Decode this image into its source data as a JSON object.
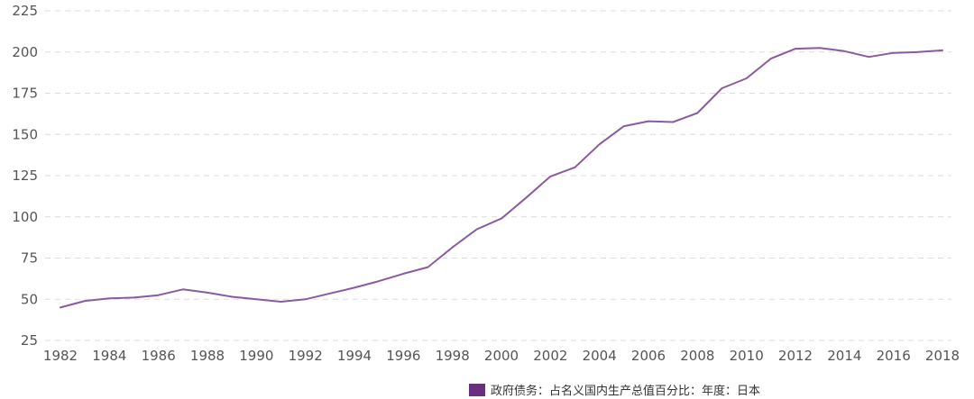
{
  "colors": {
    "series": "#8a5aa0",
    "legend_swatch": "#6b2d7e"
  },
  "chart_data": {
    "type": "line",
    "x": [
      1982,
      1983,
      1984,
      1985,
      1986,
      1987,
      1988,
      1989,
      1990,
      1991,
      1992,
      1993,
      1994,
      1995,
      1996,
      1997,
      1998,
      1999,
      2000,
      2001,
      2002,
      2003,
      2004,
      2005,
      2006,
      2007,
      2008,
      2009,
      2010,
      2011,
      2012,
      2013,
      2014,
      2015,
      2016,
      2017,
      2018
    ],
    "series": [
      {
        "name": "政府债务：占名义国内生产总值百分比：年度：日本",
        "values": [
          45,
          49,
          50.5,
          51,
          52.5,
          56,
          54,
          51.5,
          50,
          48.5,
          50,
          53.5,
          57,
          61,
          65.5,
          69.5,
          81.5,
          92.5,
          99,
          111.5,
          124.5,
          130,
          144,
          155,
          158,
          157.5,
          163,
          178,
          184,
          196,
          202,
          202.5,
          200.5,
          197,
          199.5,
          200,
          201
        ]
      }
    ],
    "xticks": [
      "1982",
      "1984",
      "1986",
      "1988",
      "1990",
      "1992",
      "1994",
      "1996",
      "1998",
      "2000",
      "2002",
      "2004",
      "2006",
      "2008",
      "2010",
      "2012",
      "2014",
      "2016",
      "2018"
    ],
    "yticks": [
      "25",
      "50",
      "75",
      "100",
      "125",
      "150",
      "175",
      "200",
      "225"
    ],
    "ylim": [
      25,
      225
    ],
    "xlim": [
      1982,
      2018
    ],
    "grid": true,
    "legend_position": "bottom-right"
  }
}
